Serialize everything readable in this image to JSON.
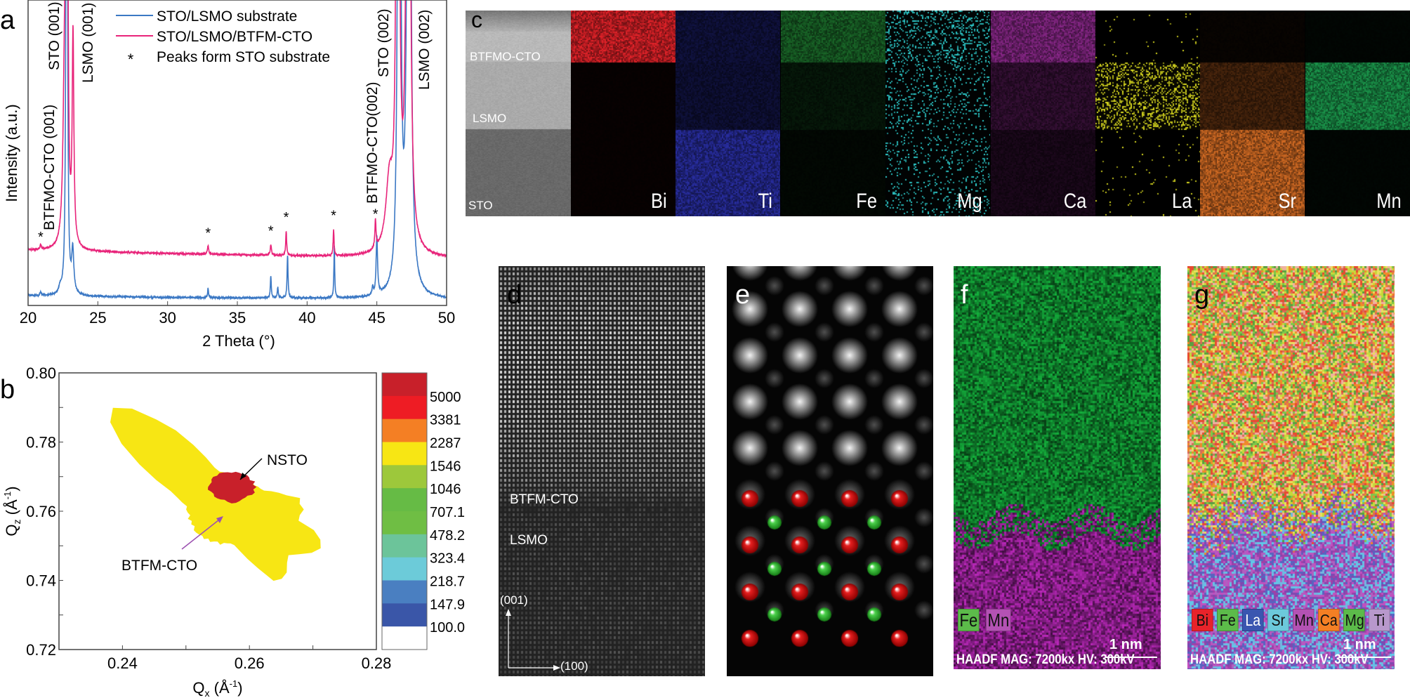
{
  "panels": {
    "a": "a",
    "b": "b",
    "c": "c",
    "d": "d",
    "e": "e",
    "f": "f",
    "g": "g"
  },
  "chart_data": [
    {
      "type": "line",
      "title": "",
      "xlabel": "2 Theta (°)",
      "ylabel": "Intensity (a.u.)",
      "xlim": [
        20,
        50
      ],
      "ylim": [
        0,
        100
      ],
      "xticks": [
        20,
        25,
        30,
        35,
        40,
        45,
        50
      ],
      "grid": false,
      "legend_position": "top-right",
      "legend": [
        {
          "label": "STO/LSMO substrate",
          "color": "#3b78c4"
        },
        {
          "label": "STO/LSMO/BTFM-CTO",
          "color": "#e8247a"
        },
        {
          "label": "Peaks form STO substrate",
          "marker": "*"
        }
      ],
      "series": [
        {
          "name": "STO/LSMO substrate",
          "color": "#3b78c4",
          "baseline": [
            [
              20,
              3.2
            ],
            [
              30,
              2.6
            ],
            [
              44,
              2.2
            ],
            [
              50,
              2.0
            ]
          ],
          "peaks": [
            [
              20.9,
              1.2,
              0.05
            ],
            [
              22.3,
              2.0,
              0.1
            ],
            [
              22.77,
              400,
              0.04
            ],
            [
              23.2,
              14,
              0.09
            ],
            [
              32.9,
              2.8,
              0.04
            ],
            [
              37.4,
              7,
              0.04
            ],
            [
              37.9,
              3.5,
              0.04
            ],
            [
              38.6,
              14,
              0.04
            ],
            [
              41.95,
              17,
              0.035
            ],
            [
              44.7,
              2.5,
              0.05
            ],
            [
              45.0,
              19,
              0.06
            ],
            [
              46.6,
              400,
              0.08
            ],
            [
              47.3,
              400,
              0.1
            ]
          ]
        },
        {
          "name": "STO/LSMO/BTFM-CTO",
          "color": "#e8247a",
          "baseline": [
            [
              20,
              18.0
            ],
            [
              30,
              17.0
            ],
            [
              44,
              15.8
            ],
            [
              50,
              15.5
            ]
          ],
          "peaks": [
            [
              20.9,
              1.5,
              0.05
            ],
            [
              22.6,
              42,
              0.12
            ],
            [
              22.77,
              400,
              0.05
            ],
            [
              23.22,
              68,
              0.07
            ],
            [
              32.9,
              2.8,
              0.05
            ],
            [
              37.4,
              3.5,
              0.05
            ],
            [
              38.5,
              8,
              0.04
            ],
            [
              41.9,
              8.5,
              0.04
            ],
            [
              44.9,
              9,
              0.05
            ],
            [
              45.9,
              22,
              0.3
            ],
            [
              46.5,
              400,
              0.08
            ],
            [
              47.25,
              400,
              0.1
            ]
          ]
        }
      ],
      "star_markers": [
        20.9,
        32.9,
        37.4,
        38.5,
        41.9,
        44.9
      ],
      "annotations": [
        {
          "text": "STO (001)"
        },
        {
          "text": "LSMO (001)"
        },
        {
          "text": "BTFMO-CTO (001)"
        },
        {
          "text": "BTFMO-CTO(002)"
        },
        {
          "text": "STO (002)"
        },
        {
          "text": "LSMO (002)"
        }
      ]
    },
    {
      "type": "heatmap",
      "subtype": "contour (reciprocal space map)",
      "xlabel": "Qx (Å-1)",
      "ylabel": "Qz (Å-1)",
      "xlim": [
        0.23,
        0.28
      ],
      "ylim": [
        0.72,
        0.8
      ],
      "xticks": [
        "0.24",
        "0.26",
        "0.28"
      ],
      "yticks": [
        "0.72",
        "0.74",
        "0.76",
        "0.78",
        "0.80"
      ],
      "colorbar": {
        "labels": [
          "5000",
          "3381",
          "2287",
          "1546",
          "1046",
          "707.1",
          "478.2",
          "323.4",
          "218.7",
          "147.9",
          "100.0"
        ],
        "colors": [
          "#c8202a",
          "#ee1c24",
          "#f47f24",
          "#f7e614",
          "#9dc83b",
          "#66bb45",
          "#6fbe44",
          "#6cc49a",
          "#6ccbd9",
          "#4a7fc1",
          "#3a56a8",
          "#ffffff"
        ]
      },
      "peaks": [
        {
          "label": "NSTO",
          "qx": 0.2575,
          "qz": 0.767
        },
        {
          "label": "BTFM-CTO",
          "qx": 0.2565,
          "qz": 0.76
        }
      ]
    }
  ],
  "eds": {
    "haadf_layers": [
      "BTFMO-CTO",
      "LSMO",
      "STO"
    ],
    "maps": [
      {
        "element": "Bi",
        "color": "#e8232a",
        "profile": [
          1.0,
          0.04,
          0.04
        ],
        "mode": "fill"
      },
      {
        "element": "Ti",
        "color": "#3036c0",
        "profile": [
          0.35,
          0.32,
          0.85
        ],
        "mode": "fill"
      },
      {
        "element": "Fe",
        "color": "#2fbf4a",
        "profile": [
          0.55,
          0.14,
          0.05
        ],
        "mode": "fill"
      },
      {
        "element": "Mg",
        "color": "#2fd6d6",
        "profile": [
          0.6,
          0.35,
          0.3
        ],
        "mode": "dots"
      },
      {
        "element": "Ca",
        "color": "#c438c4",
        "profile": [
          0.7,
          0.28,
          0.15
        ],
        "mode": "fill"
      },
      {
        "element": "La",
        "color": "#e0e020",
        "profile": [
          0.03,
          0.8,
          0.04
        ],
        "mode": "dots"
      },
      {
        "element": "Sr",
        "color": "#f07a28",
        "profile": [
          0.04,
          0.32,
          0.9
        ],
        "mode": "fill"
      },
      {
        "element": "Mn",
        "color": "#22c060",
        "profile": [
          0.04,
          0.8,
          0.04
        ],
        "mode": "fill"
      }
    ]
  },
  "panel_d": {
    "film_label": "BTFM-CTO",
    "substrate_label": "LSMO",
    "axis_vertical": "(001)",
    "axis_horizontal": "(100)"
  },
  "panel_f": {
    "legend": [
      {
        "label": "Fe",
        "color": "#5cbb4a"
      },
      {
        "label": "Mn",
        "color": "#b452b4"
      }
    ],
    "scale": "1 nm",
    "info": "HAADF MAG: 7200kx HV: 300kV"
  },
  "panel_g": {
    "legend": [
      {
        "label": "Bi",
        "color": "#e8232a"
      },
      {
        "label": "Fe",
        "color": "#5cbb4a"
      },
      {
        "label": "La",
        "color": "#3a56b0",
        "text": "#fff"
      },
      {
        "label": "Sr",
        "color": "#6cc9dc"
      },
      {
        "label": "Mn",
        "color": "#b452b4"
      },
      {
        "label": "Ca",
        "color": "#f47f24"
      },
      {
        "label": "Mg",
        "color": "#5cbb4a"
      },
      {
        "label": "Ti",
        "color": "#b898cc"
      }
    ],
    "scale": "1 nm",
    "info": "HAADF MAG: 7200kx HV: 300kV"
  }
}
